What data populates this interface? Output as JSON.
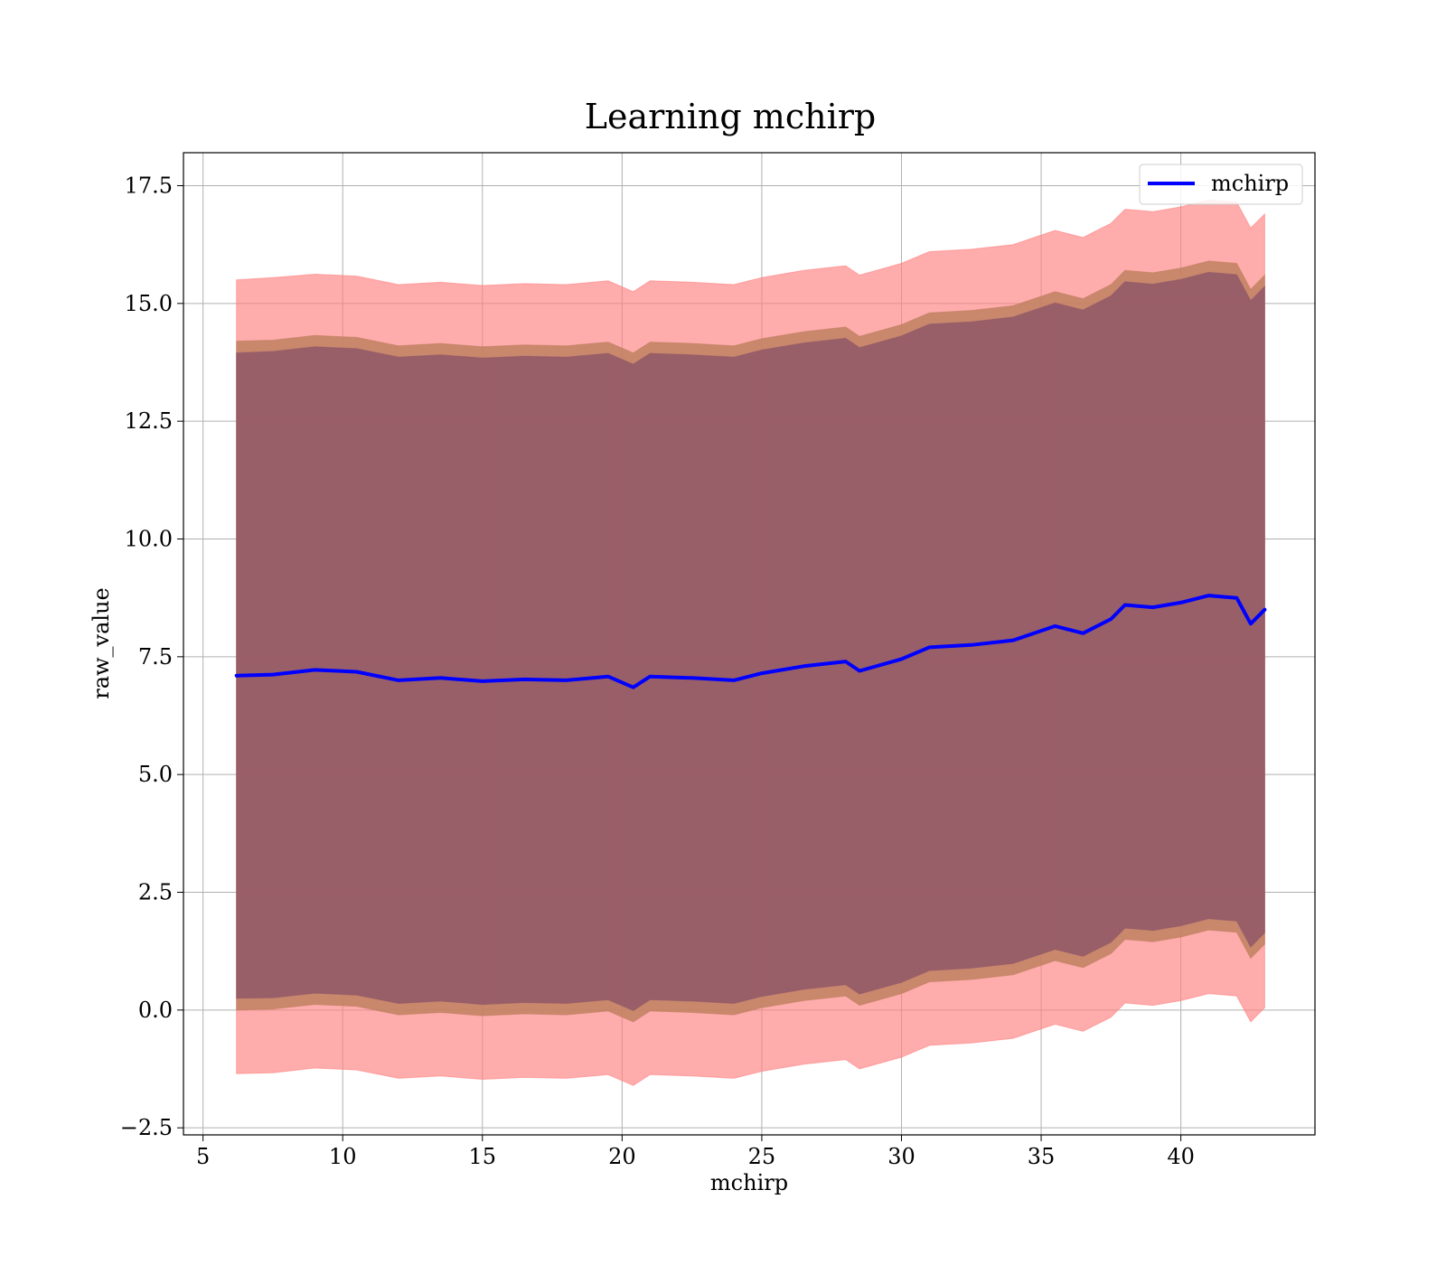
{
  "chart_data": {
    "type": "area",
    "title": "Learning mchirp",
    "xlabel": "mchirp",
    "ylabel": "raw_value",
    "xlim": [
      4.3,
      44.8
    ],
    "ylim": [
      -2.65,
      18.2
    ],
    "xticks": [
      5,
      10,
      15,
      20,
      25,
      30,
      35,
      40
    ],
    "xtick_labels": [
      "5",
      "10",
      "15",
      "20",
      "25",
      "30",
      "35",
      "40"
    ],
    "yticks": [
      -2.5,
      0.0,
      2.5,
      5.0,
      7.5,
      10.0,
      12.5,
      15.0,
      17.5
    ],
    "ytick_labels": [
      "−2.5",
      "0.0",
      "2.5",
      "5.0",
      "7.5",
      "10.0",
      "12.5",
      "15.0",
      "17.5"
    ],
    "grid": true,
    "legend_position": "top-right",
    "x": [
      6.2,
      7.5,
      9.0,
      10.5,
      12.0,
      13.5,
      15.0,
      16.5,
      18.0,
      19.5,
      20.4,
      21.0,
      22.5,
      24.0,
      25.0,
      26.5,
      28.0,
      28.5,
      30.0,
      31.0,
      32.5,
      34.0,
      35.5,
      36.5,
      37.5,
      38.0,
      39.0,
      40.0,
      41.0,
      42.0,
      42.5,
      43.0
    ],
    "series": [
      {
        "name": "mchirp",
        "role": "mean",
        "color": "#0000ff",
        "values": [
          7.1,
          7.12,
          7.22,
          7.18,
          7.0,
          7.05,
          6.98,
          7.02,
          7.0,
          7.08,
          6.85,
          7.08,
          7.05,
          7.0,
          7.15,
          7.3,
          7.4,
          7.2,
          7.45,
          7.7,
          7.75,
          7.85,
          8.15,
          8.0,
          8.3,
          8.6,
          8.55,
          8.65,
          8.8,
          8.75,
          8.2,
          8.5
        ]
      }
    ],
    "bands": [
      {
        "level": "outer",
        "color": "#ff8080",
        "opacity": 0.65,
        "upper": [
          15.5,
          15.55,
          15.62,
          15.58,
          15.4,
          15.45,
          15.38,
          15.42,
          15.4,
          15.48,
          15.25,
          15.48,
          15.45,
          15.4,
          15.55,
          15.7,
          15.8,
          15.6,
          15.85,
          16.1,
          16.15,
          16.25,
          16.55,
          16.4,
          16.7,
          17.0,
          16.95,
          17.05,
          17.2,
          17.15,
          16.6,
          16.9
        ],
        "lower": [
          -1.35,
          -1.33,
          -1.23,
          -1.27,
          -1.45,
          -1.4,
          -1.47,
          -1.43,
          -1.45,
          -1.37,
          -1.6,
          -1.37,
          -1.4,
          -1.45,
          -1.3,
          -1.15,
          -1.05,
          -1.25,
          -1.0,
          -0.75,
          -0.7,
          -0.6,
          -0.3,
          -0.45,
          -0.15,
          0.15,
          0.1,
          0.2,
          0.35,
          0.3,
          -0.25,
          0.05
        ]
      },
      {
        "level": "middle",
        "color": "#c08060",
        "opacity": 0.85,
        "upper": [
          14.2,
          14.22,
          14.32,
          14.28,
          14.1,
          14.15,
          14.08,
          14.12,
          14.1,
          14.18,
          13.95,
          14.18,
          14.15,
          14.1,
          14.25,
          14.4,
          14.5,
          14.3,
          14.55,
          14.8,
          14.85,
          14.95,
          15.25,
          15.1,
          15.4,
          15.7,
          15.65,
          15.75,
          15.9,
          15.85,
          15.3,
          15.6
        ],
        "lower": [
          0.0,
          0.02,
          0.12,
          0.08,
          -0.1,
          -0.05,
          -0.12,
          -0.08,
          -0.1,
          -0.02,
          -0.25,
          -0.02,
          -0.05,
          -0.1,
          0.05,
          0.2,
          0.3,
          0.1,
          0.35,
          0.6,
          0.65,
          0.75,
          1.05,
          0.9,
          1.2,
          1.5,
          1.45,
          1.55,
          1.7,
          1.65,
          1.1,
          1.4
        ]
      },
      {
        "level": "inner",
        "color": "#905868",
        "opacity": 0.85,
        "upper": [
          13.95,
          13.98,
          14.08,
          14.04,
          13.86,
          13.91,
          13.84,
          13.88,
          13.86,
          13.94,
          13.71,
          13.94,
          13.91,
          13.86,
          14.01,
          14.16,
          14.26,
          14.06,
          14.31,
          14.56,
          14.61,
          14.71,
          15.01,
          14.86,
          15.16,
          15.46,
          15.41,
          15.51,
          15.66,
          15.61,
          15.06,
          15.36
        ],
        "lower": [
          0.25,
          0.26,
          0.36,
          0.32,
          0.14,
          0.19,
          0.12,
          0.16,
          0.14,
          0.22,
          -0.01,
          0.22,
          0.19,
          0.14,
          0.29,
          0.44,
          0.54,
          0.34,
          0.59,
          0.84,
          0.89,
          0.99,
          1.29,
          1.14,
          1.44,
          1.74,
          1.69,
          1.79,
          1.94,
          1.89,
          1.34,
          1.64
        ]
      }
    ]
  }
}
